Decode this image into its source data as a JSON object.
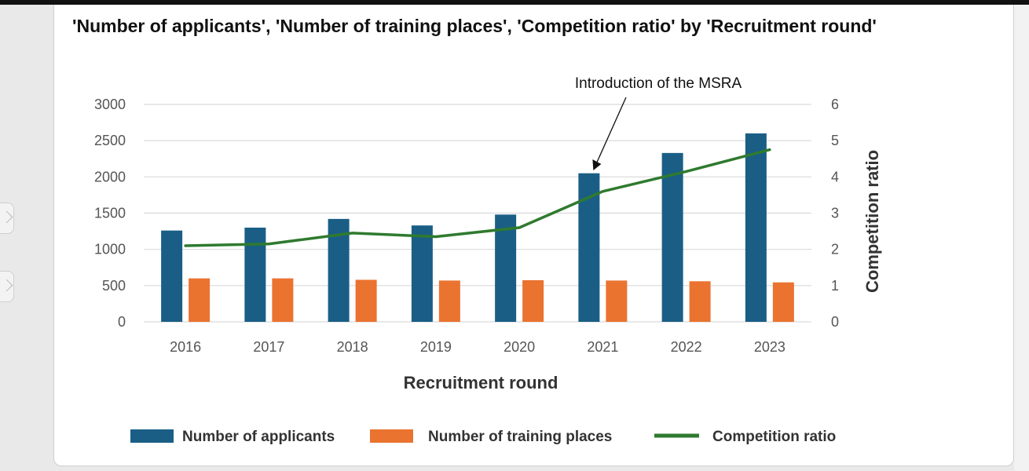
{
  "chart_data": {
    "type": "bar",
    "title": "'Number of applicants', 'Number of training places', 'Competition ratio' by 'Recruitment round'",
    "xlabel": "Recruitment round",
    "ylabel": "",
    "y2label": "Competition ratio",
    "categories": [
      "2016",
      "2017",
      "2018",
      "2019",
      "2020",
      "2021",
      "2022",
      "2023"
    ],
    "ylim": [
      0,
      3000
    ],
    "y2lim": [
      0,
      6
    ],
    "yticks": [
      "0",
      "500",
      "1000",
      "1500",
      "2000",
      "2500",
      "3000"
    ],
    "y2ticks": [
      "0",
      "1",
      "2",
      "3",
      "4",
      "5",
      "6"
    ],
    "grid": true,
    "legend_position": "bottom",
    "series": [
      {
        "name": "Number of applicants",
        "type": "bar",
        "axis": "left",
        "color": "#1a5e86",
        "values": [
          1260,
          1300,
          1420,
          1330,
          1480,
          2050,
          2330,
          2600
        ]
      },
      {
        "name": "Number of training places",
        "type": "bar",
        "axis": "left",
        "color": "#ea7330",
        "values": [
          600,
          600,
          580,
          570,
          575,
          570,
          560,
          545
        ]
      },
      {
        "name": "Competition ratio",
        "type": "line",
        "axis": "right",
        "color": "#2f7a2f",
        "values": [
          2.1,
          2.15,
          2.45,
          2.35,
          2.6,
          3.6,
          4.15,
          4.75
        ]
      }
    ],
    "annotations": [
      {
        "text": "Introduction of the MSRA",
        "category": "2021"
      }
    ]
  }
}
